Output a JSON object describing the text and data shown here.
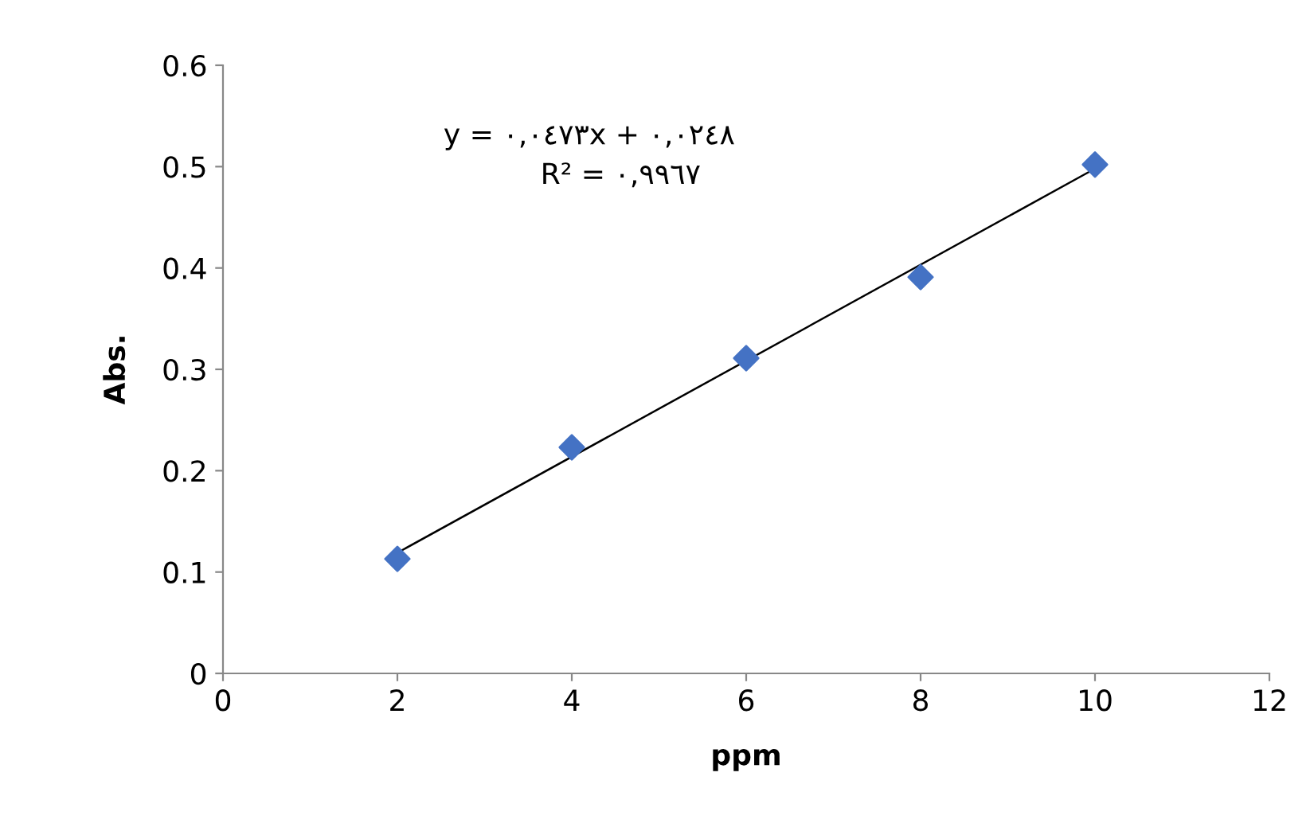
{
  "chart_data": {
    "type": "scatter",
    "xlabel": "ppm",
    "ylabel": "Abs.",
    "annotations": [
      "y = ٠,٠٤٧٣x + ٠,٠٢٤٨",
      "R² = ٠,٩٩٦٧"
    ],
    "series": [
      {
        "color": "#4472c4",
        "marker": "diamond",
        "x": [
          2,
          4,
          6,
          8,
          10
        ],
        "values": [
          0.113,
          0.223,
          0.311,
          0.391,
          0.502
        ]
      },
      {
        "type": "line",
        "color": "#000000",
        "marker": "none",
        "line_style": "solid",
        "x": [
          2,
          10
        ],
        "values": [
          0.119,
          0.498
        ]
      }
    ],
    "xlim": [
      0,
      12
    ],
    "xticks": [
      0,
      2,
      4,
      6,
      8,
      10,
      12
    ],
    "ylim": [
      0,
      0.6
    ],
    "yticks": [
      0,
      0.1,
      0.2,
      0.3,
      0.4,
      0.5,
      0.6
    ],
    "grid": false,
    "legend": false
  }
}
